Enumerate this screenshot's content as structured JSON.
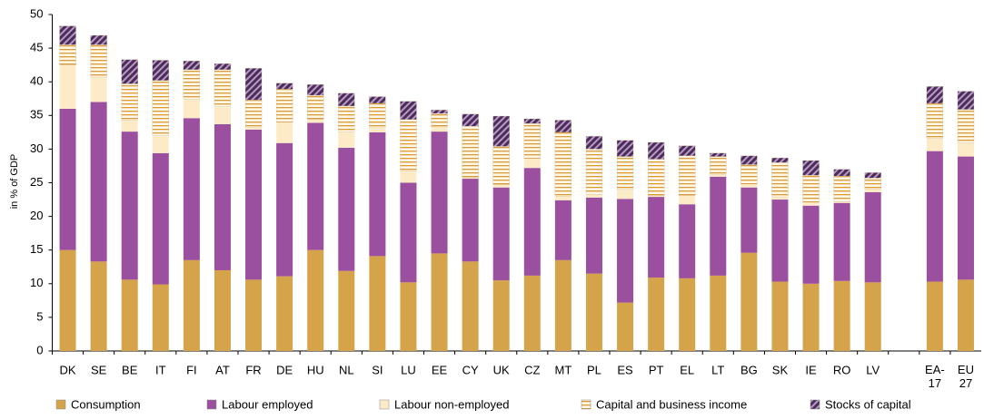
{
  "chart_data": {
    "type": "stacked_bar",
    "y_label": "in % of GDP",
    "categories": [
      "DK",
      "SE",
      "BE",
      "IT",
      "FI",
      "AT",
      "FR",
      "DE",
      "HU",
      "NL",
      "SI",
      "LU",
      "EE",
      "CY",
      "UK",
      "CZ",
      "MT",
      "PL",
      "ES",
      "PT",
      "EL",
      "LT",
      "BG",
      "SK",
      "IE",
      "RO",
      "LV",
      null,
      "EA- 17",
      "EU 27"
    ],
    "series": [
      {
        "name": "Consumption",
        "color": "#d4a34a",
        "fill_style": "solid",
        "values": [
          15,
          13.3,
          10.6,
          9.9,
          13.5,
          12,
          10.6,
          11.1,
          15,
          11.9,
          14.1,
          10.2,
          14.5,
          13.3,
          10.5,
          11.2,
          13.5,
          11.5,
          7.2,
          10.9,
          10.8,
          11.2,
          14.6,
          10.3,
          10,
          10.4,
          10.2,
          null,
          10.3,
          10.6
        ]
      },
      {
        "name": "Labour employed",
        "color": "#9b4f9f",
        "fill_style": "solid",
        "values": [
          21,
          23.7,
          22,
          19.5,
          21.1,
          21.7,
          22.3,
          19.8,
          18.9,
          18.3,
          18.4,
          14.8,
          18.1,
          12.3,
          13.8,
          16,
          8.9,
          11.3,
          15.4,
          12,
          11,
          14.7,
          9.7,
          12.2,
          11.6,
          11.6,
          13.4,
          null,
          19.4,
          18.3
        ]
      },
      {
        "name": "Labour non-employed",
        "color": "#fdebc8",
        "fill_style": "solid",
        "values": [
          6.5,
          3.7,
          1.7,
          2.6,
          2.8,
          2.6,
          0.3,
          3.1,
          0.5,
          2.4,
          0.7,
          1.8,
          0.7,
          0.2,
          0.4,
          1.4,
          0.6,
          0.5,
          1.4,
          0.2,
          1.3,
          0.3,
          0.5,
          0.4,
          0.5,
          0.2,
          0.5,
          null,
          1.9,
          2
        ]
      },
      {
        "name": "Capital and business income",
        "color": "#d99a3a",
        "fill_style": "horizontal-stripes",
        "values": [
          3,
          4.8,
          5.4,
          8.2,
          4.4,
          5.5,
          4.1,
          4.9,
          3.6,
          3.8,
          3.6,
          7.6,
          2,
          7.6,
          5.7,
          5.2,
          9.5,
          6.7,
          4.9,
          5.4,
          5.9,
          2.7,
          2.9,
          5.1,
          4,
          3.8,
          1.6,
          null,
          5.2,
          5
        ]
      },
      {
        "name": "Stocks of capital",
        "color": "#4b2d58",
        "fill_style": "diagonal-hatch",
        "values": [
          2.8,
          1.4,
          3.6,
          3,
          1.3,
          0.9,
          4.7,
          0.9,
          1.6,
          1.9,
          1,
          2.7,
          0.5,
          1.8,
          4.5,
          0.7,
          1.8,
          1.9,
          2.4,
          2.5,
          1.5,
          0.5,
          1.3,
          0.7,
          2.2,
          1,
          0.8,
          null,
          2.5,
          2.7
        ]
      }
    ],
    "ylim": [
      0,
      50
    ],
    "yticks": [
      0,
      5,
      10,
      15,
      20,
      25,
      30,
      35,
      40,
      45,
      50
    ],
    "grid": false,
    "legend": "bottom"
  }
}
